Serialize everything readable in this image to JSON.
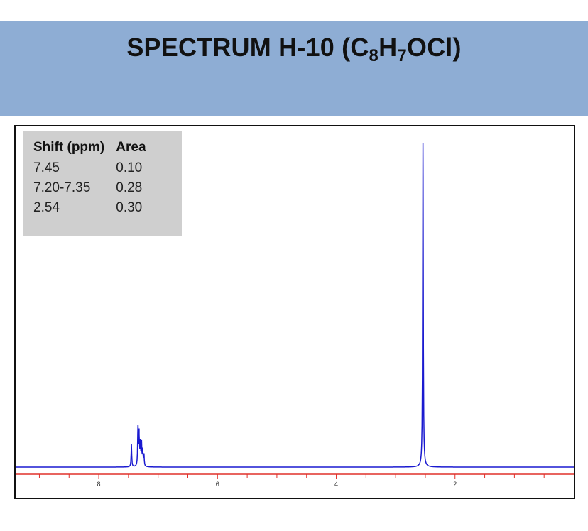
{
  "title": {
    "prefix": "SPECTRUM H-10 (C",
    "sub1": "8",
    "mid1": "H",
    "sub2": "7",
    "suffix": "OCl)"
  },
  "colors": {
    "banner": "#8eadd4",
    "spectrum_line": "#1a1ad0",
    "baseline_axis": "#e0302a",
    "table_bg": "#cfcfcf"
  },
  "peak_table": {
    "headers": [
      "Shift (ppm)",
      "Area"
    ],
    "rows": [
      {
        "shift": "7.45",
        "area": "0.10"
      },
      {
        "shift": "7.20-7.35",
        "area": "0.28"
      },
      {
        "shift": "2.54",
        "area": "0.30"
      }
    ]
  },
  "chart_data": {
    "type": "line",
    "x_axis": {
      "reversed": true,
      "xlim": [
        9.4,
        0.0
      ],
      "major_ticks": [
        8,
        6,
        4,
        2
      ],
      "tick_labels": [
        "8",
        "6",
        "4",
        "2"
      ],
      "minor_tick_step": 0.5
    },
    "ylim": [
      0,
      1
    ],
    "grid": false,
    "peaks": [
      {
        "ppm": 7.45,
        "intensity": 0.07
      },
      {
        "ppm": 7.34,
        "intensity": 0.13
      },
      {
        "ppm": 7.32,
        "intensity": 0.1
      },
      {
        "ppm": 7.3,
        "intensity": 0.08
      },
      {
        "ppm": 7.28,
        "intensity": 0.07
      },
      {
        "ppm": 7.26,
        "intensity": 0.05
      },
      {
        "ppm": 7.24,
        "intensity": 0.04
      },
      {
        "ppm": 2.54,
        "intensity": 1.0
      }
    ]
  }
}
